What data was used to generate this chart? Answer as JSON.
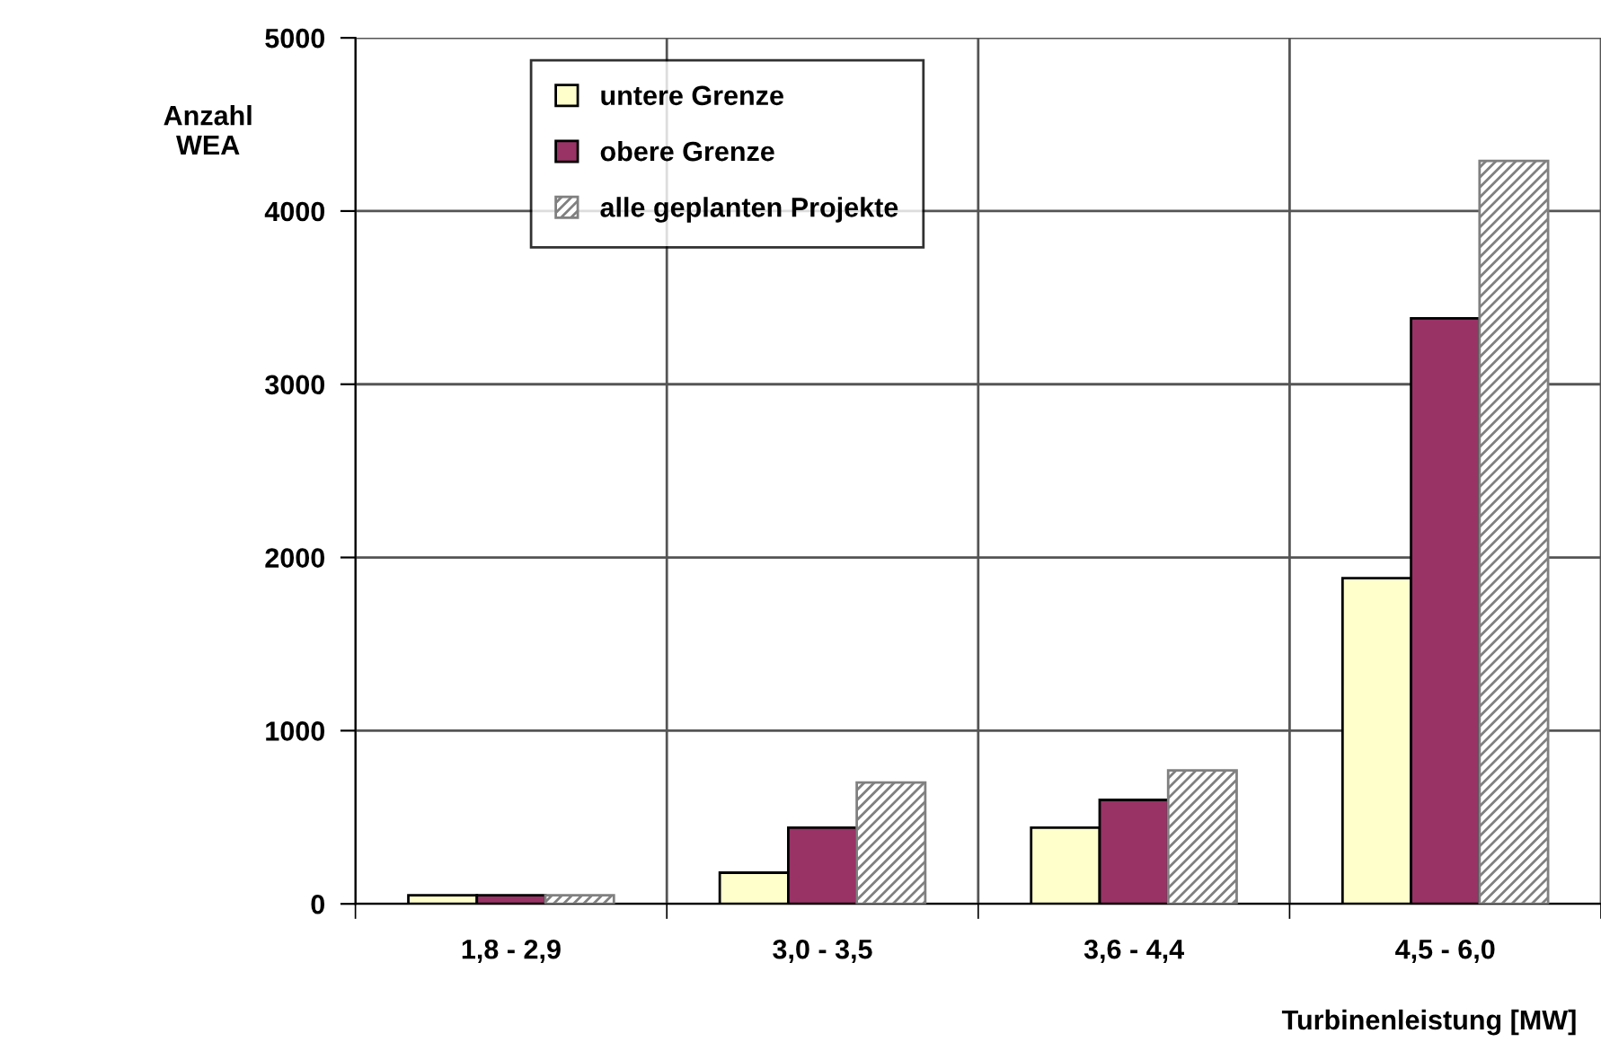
{
  "chart_data": {
    "type": "bar",
    "categories": [
      "1,8 - 2,9",
      "3,0 - 3,5",
      "3,6 - 4,4",
      "4,5 - 6,0"
    ],
    "series": [
      {
        "name": "untere Grenze",
        "color": "#ffffcc",
        "values": [
          50,
          180,
          440,
          1880
        ]
      },
      {
        "name": "obere Grenze",
        "color": "#993366",
        "values": [
          50,
          440,
          600,
          3380
        ]
      },
      {
        "name": "alle geplanten Projekte",
        "color": "#808080",
        "values": [
          50,
          700,
          770,
          4290
        ]
      }
    ],
    "xlabel": "Turbinenleistung [MW]",
    "ylabel": "Anzahl\nWEA",
    "ylim": [
      0,
      5000
    ],
    "yticks": [
      0,
      1000,
      2000,
      3000,
      4000,
      5000
    ],
    "grid": true,
    "legend": "top left"
  }
}
